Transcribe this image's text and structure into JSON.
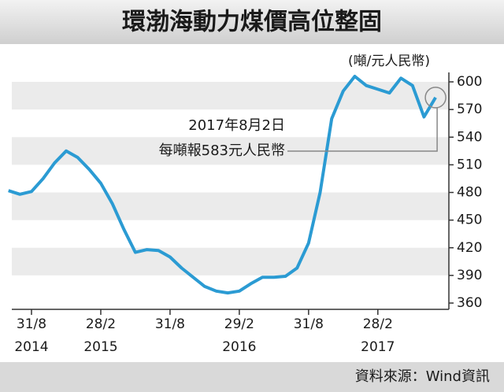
{
  "chart_data": {
    "type": "line",
    "title": "環渤海動力煤價高位整固",
    "y_axis_label": "(噸/元人民幣)",
    "source": "資料來源：Wind資訊",
    "annotations": [
      "2017年8月2日",
      "每噸報583元人民幣"
    ],
    "categories": [
      null,
      null,
      "31/8",
      null,
      null,
      null,
      null,
      null,
      "28/2",
      null,
      null,
      null,
      null,
      null,
      "31/8",
      null,
      null,
      null,
      null,
      null,
      "29/2",
      null,
      null,
      null,
      null,
      null,
      "31/8",
      null,
      null,
      null,
      null,
      null,
      "28/2",
      null,
      null,
      null,
      null,
      null
    ],
    "year_labels": [
      null,
      null,
      "2014",
      null,
      null,
      null,
      null,
      null,
      "2015",
      null,
      null,
      null,
      null,
      null,
      null,
      null,
      null,
      null,
      null,
      null,
      "2016",
      null,
      null,
      null,
      null,
      null,
      null,
      null,
      null,
      null,
      null,
      null,
      "2017",
      null,
      null,
      null,
      null,
      null
    ],
    "values": [
      482,
      478,
      481,
      495,
      512,
      525,
      518,
      505,
      490,
      468,
      440,
      415,
      418,
      417,
      410,
      398,
      388,
      378,
      373,
      371,
      373,
      381,
      388,
      388,
      389,
      398,
      425,
      480,
      560,
      590,
      606,
      596,
      592,
      588,
      604,
      596,
      562,
      583
    ],
    "color": "#2b9bd3",
    "ylim": [
      360,
      600
    ],
    "yticks": [
      360,
      390,
      420,
      450,
      480,
      510,
      540,
      570,
      600
    ],
    "y_axis_side": "right",
    "striped_background": true
  }
}
